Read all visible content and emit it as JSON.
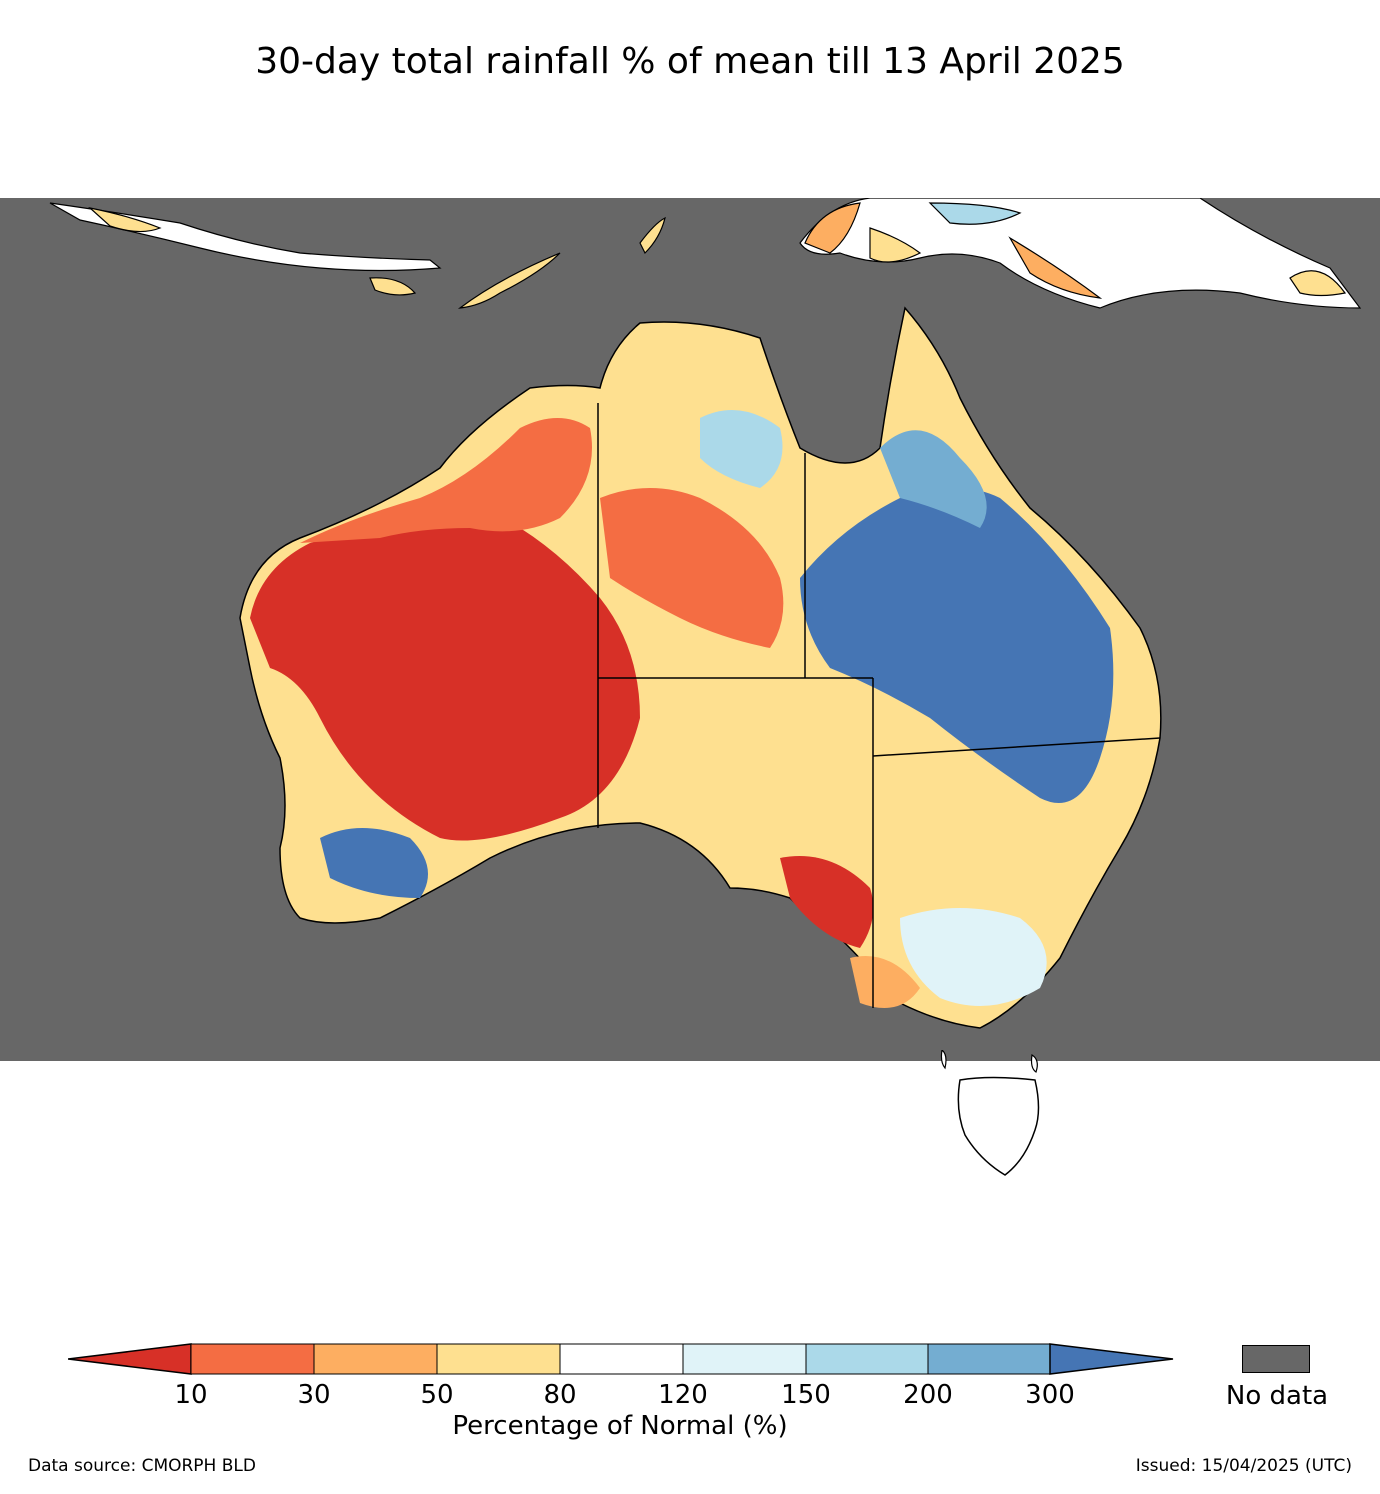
{
  "title": "30-day total rainfall % of mean till 13 April 2025",
  "colorbar": {
    "label": "Percentage of Normal (%)",
    "ticks": [
      "10",
      "30",
      "50",
      "80",
      "120",
      "150",
      "200",
      "300"
    ],
    "colors": [
      "#d73027",
      "#f46d43",
      "#fdae61",
      "#fee090",
      "#ffffff",
      "#e0f3f8",
      "#abd9e9",
      "#74add1",
      "#4575b4"
    ],
    "under_color": "#d73027",
    "over_color": "#4575b4"
  },
  "nodata": {
    "label": "No data",
    "color": "#676767"
  },
  "source": "Data source: CMORPH BLD",
  "issued": "Issued: 15/04/2025 (UTC)"
}
